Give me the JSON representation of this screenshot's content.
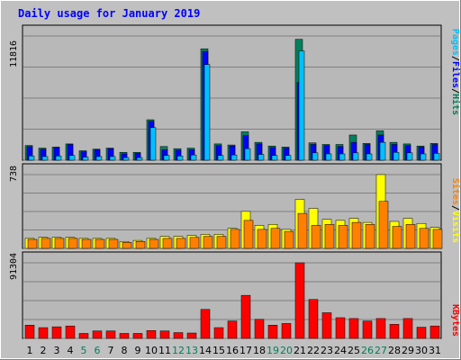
{
  "title": "Daily usage for January 2019",
  "colors": {
    "background": "#c0c0c0",
    "plot_bg": "#b8b8b8",
    "title": "#0000ff",
    "hits": "#00805c",
    "files": "#0000ff",
    "pages": "#00c0ff",
    "visits": "#ffff00",
    "sites": "#ff8000",
    "kbytes": "#ff0000",
    "weekend": "#00805c",
    "grid": "#808080",
    "text": "#000000"
  },
  "chart_data": [
    {
      "type": "bar",
      "title": "Daily usage for January 2019",
      "panel": "hits_files_pages",
      "ymax_label": "11816",
      "ymax": 11816,
      "legend": [
        "Pages",
        "/",
        "Files",
        "/",
        "Hits"
      ],
      "grid": true,
      "categories": [
        "1",
        "2",
        "3",
        "4",
        "5",
        "6",
        "7",
        "8",
        "9",
        "10",
        "11",
        "12",
        "13",
        "14",
        "15",
        "16",
        "17",
        "18",
        "19",
        "20",
        "21",
        "22",
        "23",
        "24",
        "25",
        "26",
        "27",
        "28",
        "29",
        "30",
        "31"
      ],
      "series": [
        {
          "name": "Hits",
          "values": [
            1400,
            1150,
            1250,
            1550,
            900,
            1050,
            1150,
            750,
            750,
            3850,
            1300,
            1100,
            1150,
            10600,
            1550,
            1450,
            2700,
            1700,
            1350,
            1250,
            11500,
            1650,
            1500,
            1500,
            2400,
            1600,
            2800,
            1700,
            1550,
            1350,
            1600
          ]
        },
        {
          "name": "Files",
          "values": [
            1300,
            1050,
            1200,
            1500,
            800,
            1000,
            1100,
            600,
            650,
            3700,
            1000,
            950,
            1000,
            10350,
            1400,
            1350,
            2350,
            1550,
            1200,
            1150,
            7400,
            1500,
            1400,
            1300,
            1700,
            1500,
            2400,
            1500,
            1400,
            1250,
            1500
          ]
        },
        {
          "name": "Pages",
          "values": [
            400,
            350,
            400,
            450,
            300,
            350,
            350,
            250,
            250,
            3100,
            450,
            400,
            500,
            9100,
            450,
            500,
            1100,
            550,
            450,
            450,
            10400,
            700,
            600,
            600,
            700,
            600,
            1700,
            750,
            700,
            600,
            650
          ]
        }
      ]
    },
    {
      "type": "bar",
      "panel": "visits_sites",
      "ymax_label": "738",
      "ymax": 738,
      "legend": [
        "Sites",
        "/",
        "Visits"
      ],
      "grid": true,
      "categories": [
        "1",
        "2",
        "3",
        "4",
        "5",
        "6",
        "7",
        "8",
        "9",
        "10",
        "11",
        "12",
        "13",
        "14",
        "15",
        "16",
        "17",
        "18",
        "19",
        "20",
        "21",
        "22",
        "23",
        "24",
        "25",
        "26",
        "27",
        "28",
        "29",
        "30",
        "31"
      ],
      "series": [
        {
          "name": "Visits",
          "values": [
            100,
            110,
            110,
            110,
            100,
            100,
            100,
            70,
            80,
            100,
            120,
            120,
            130,
            140,
            140,
            200,
            370,
            230,
            240,
            190,
            490,
            400,
            290,
            280,
            300,
            260,
            738,
            270,
            300,
            250,
            210
          ]
        },
        {
          "name": "Sites",
          "values": [
            90,
            100,
            100,
            100,
            90,
            90,
            90,
            60,
            70,
            90,
            100,
            100,
            110,
            120,
            120,
            190,
            280,
            190,
            200,
            170,
            350,
            230,
            240,
            230,
            260,
            240,
            470,
            220,
            240,
            200,
            190
          ]
        }
      ]
    },
    {
      "type": "bar",
      "panel": "kbytes",
      "ymax_label": "91304",
      "ymax": 91304,
      "legend": [
        "KBytes"
      ],
      "grid": true,
      "categories": [
        "1",
        "2",
        "3",
        "4",
        "5",
        "6",
        "7",
        "8",
        "9",
        "10",
        "11",
        "12",
        "13",
        "14",
        "15",
        "16",
        "17",
        "18",
        "19",
        "20",
        "21",
        "22",
        "23",
        "24",
        "25",
        "26",
        "27",
        "28",
        "29",
        "30",
        "31"
      ],
      "series": [
        {
          "name": "KBytes",
          "values": [
            16000,
            13000,
            14000,
            15000,
            6000,
            9000,
            9000,
            6000,
            6000,
            9500,
            9000,
            7000,
            6500,
            35000,
            13000,
            21000,
            52000,
            23000,
            16000,
            18000,
            91304,
            47000,
            31000,
            25000,
            24000,
            21000,
            24000,
            17000,
            24000,
            13500,
            15000
          ]
        }
      ]
    }
  ]
}
